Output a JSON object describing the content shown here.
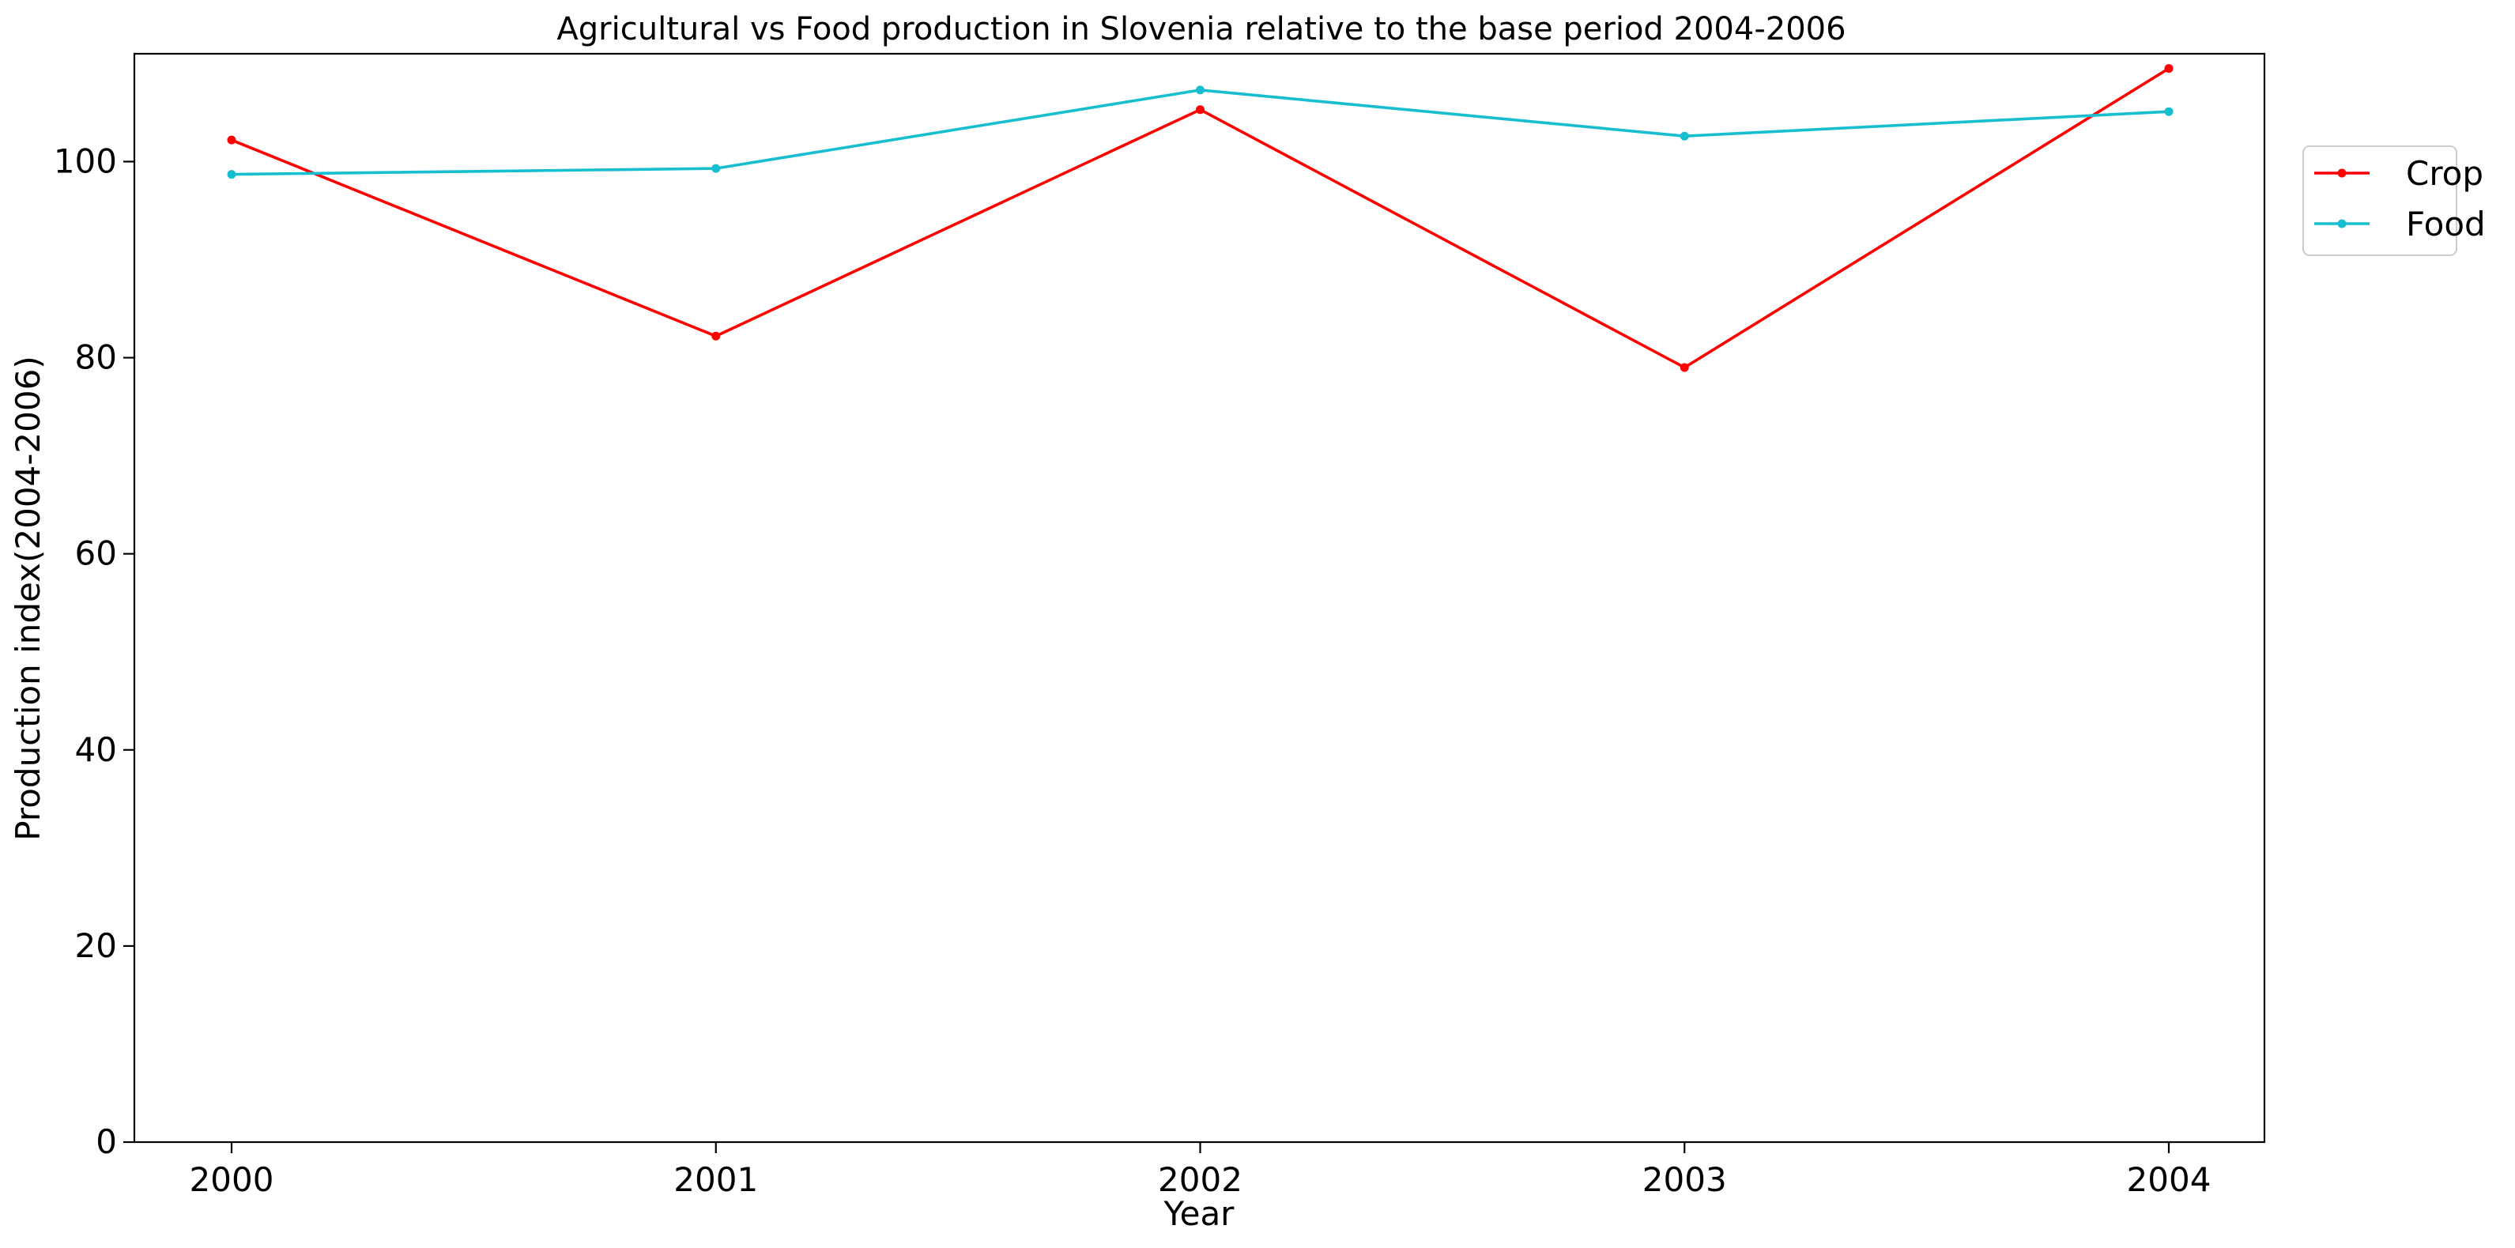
{
  "chart_data": {
    "type": "line",
    "title": "Agricultural vs Food production in Slovenia relative to the base period 2004-2006",
    "xlabel": "Year",
    "ylabel": "Production index(2004-2006)",
    "x": [
      "2000",
      "2001",
      "2002",
      "2003",
      "2004"
    ],
    "ylim": [
      0,
      111
    ],
    "yticks": [
      "0",
      "20",
      "40",
      "60",
      "80",
      "100"
    ],
    "grid": false,
    "legend": "upper-right-outside",
    "series": [
      {
        "name": "Crop",
        "color": "#ff0000",
        "values": [
          102.2,
          82.2,
          105.3,
          79.0,
          109.5
        ]
      },
      {
        "name": "Food",
        "color": "#17becf",
        "values": [
          98.7,
          99.3,
          107.3,
          102.6,
          105.1
        ]
      }
    ]
  }
}
